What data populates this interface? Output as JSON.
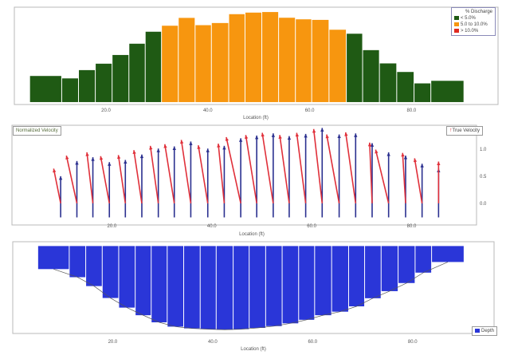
{
  "colors": {
    "green": "#1f5a14",
    "orange": "#f7960f",
    "red": "#e02a20",
    "blue_arrow": "#2a2f8f",
    "red_arrow": "#e0303a",
    "depth": "#2a36d8",
    "frame": "#b8b8b8"
  },
  "chart_data": [
    {
      "type": "bar",
      "title": "",
      "xlabel": "Location (ft)",
      "xlim": [
        2,
        97
      ],
      "ylim": [
        -0.17,
        6.65
      ],
      "xticks": [
        "20.0",
        "40.0",
        "60.0",
        "80.0"
      ],
      "xtick_values": [
        20,
        40,
        60,
        80
      ],
      "legend": {
        "title": "% Discharge",
        "placement": "top-right",
        "items": [
          "< 5.0%",
          "5.0 to 10.0%",
          "> 10.0%"
        ]
      },
      "bar_edges": [
        5.0,
        11.3,
        14.6,
        17.9,
        21.2,
        24.5,
        27.7,
        30.9,
        34.2,
        37.5,
        40.7,
        44.1,
        47.3,
        50.6,
        53.9,
        57.2,
        60.4,
        63.8,
        67.2,
        70.4,
        73.7,
        77.1,
        80.5,
        83.8,
        90.3
      ],
      "values": [
        1.83,
        1.66,
        2.24,
        2.69,
        3.3,
        4.09,
        4.93,
        5.35,
        5.9,
        5.39,
        5.54,
        6.16,
        6.27,
        6.31,
        5.91,
        5.8,
        5.76,
        5.07,
        4.79,
        3.64,
        2.71,
        2.11,
        1.31,
        1.49
      ]
    },
    {
      "type": "vector",
      "xlabel": "Location (ft)",
      "xlim": [
        0,
        93
      ],
      "ylim": [
        -0.4,
        1.44
      ],
      "xticks": [
        "20.0",
        "40.0",
        "60.0",
        "80.0"
      ],
      "xtick_values": [
        20,
        40,
        60,
        80
      ],
      "yticks": [
        "0.0",
        "0.5",
        "1.0"
      ],
      "ytick_values": [
        0,
        0.5,
        1.0
      ],
      "legend_left": "Normalized Velocity",
      "legend_right": "True Velocity",
      "arrow_base": -0.26,
      "stations": [
        9.75,
        13.0,
        16.2,
        19.5,
        22.7,
        26.0,
        29.3,
        32.5,
        35.8,
        39.2,
        42.5,
        45.8,
        49.0,
        52.3,
        55.5,
        58.8,
        62.1,
        65.5,
        68.8,
        72.1,
        75.4,
        78.8,
        82.1,
        85.4
      ],
      "normalized_velocity": [
        0.5,
        0.78,
        0.85,
        0.76,
        0.8,
        0.9,
        1.01,
        1.05,
        1.14,
        1.01,
        1.06,
        1.2,
        1.25,
        1.29,
        1.24,
        1.28,
        1.39,
        1.27,
        1.29,
        1.11,
        0.94,
        0.88,
        0.73,
        0.64
      ],
      "true_velocity": [
        0.64,
        0.88,
        0.94,
        0.87,
        0.89,
        0.98,
        1.06,
        1.09,
        1.17,
        1.07,
        1.1,
        1.22,
        1.26,
        1.3,
        1.26,
        1.3,
        1.37,
        1.27,
        1.31,
        1.12,
        0.99,
        0.93,
        0.83,
        0.77
      ],
      "true_velocity_dx_ft": [
        -1.4,
        -2.1,
        -1.2,
        -1.75,
        -1.4,
        -1.6,
        -1.6,
        -1.9,
        -1.9,
        -1.9,
        -1.2,
        -2.9,
        -2.2,
        -2.2,
        -1.9,
        -1.8,
        -1.7,
        -2.5,
        -2.0,
        -0.5,
        -2.6,
        -0.6,
        -1.5,
        0
      ]
    },
    {
      "type": "bar",
      "xlabel": "Location (ft)",
      "xlim": [
        0,
        96.3
      ],
      "ylim": [
        3.45,
        -0.17
      ],
      "xticks": [
        "20.0",
        "40.0",
        "60.0",
        "80.0"
      ],
      "xtick_values": [
        20,
        40,
        60,
        80
      ],
      "legend": {
        "placement": "bottom-right",
        "items": [
          "Depth"
        ]
      },
      "bar_edges": [
        5.0,
        11.3,
        14.6,
        17.9,
        21.2,
        24.5,
        27.7,
        30.9,
        34.2,
        37.5,
        40.7,
        44.1,
        47.3,
        50.6,
        53.9,
        57.2,
        60.4,
        63.8,
        67.2,
        70.4,
        73.7,
        77.1,
        80.5,
        83.8,
        90.3
      ],
      "values": [
        0.91,
        1.23,
        1.58,
        2.05,
        2.43,
        2.73,
        3.01,
        3.18,
        3.25,
        3.28,
        3.3,
        3.28,
        3.23,
        3.16,
        3.05,
        2.91,
        2.73,
        2.59,
        2.38,
        2.06,
        1.78,
        1.46,
        1.05,
        0.63
      ]
    }
  ]
}
